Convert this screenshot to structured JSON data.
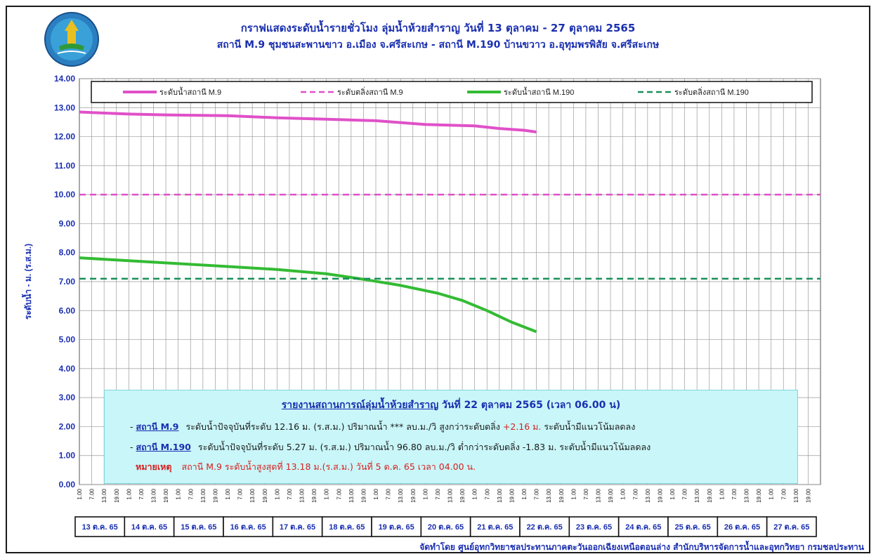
{
  "title": {
    "line1": "กราฟแสดงระดับน้ำรายชั่วโมง ลุ่มน้ำห้วยสำราญ วันที่ 13 ตุลาคม - 27 ตุลาคม 2565",
    "line2": "สถานี M.9 ชุมชนสะพานขาว อ.เมือง จ.ศรีสะเกษ  - สถานี M.190 บ้านขวาว อ.อุทุมพรพิสัย จ.ศรีสะเกษ"
  },
  "logo": {
    "text": "กรมชลประทาน",
    "icon": "royal-irrigation-department-seal-icon"
  },
  "chart_data": {
    "type": "line",
    "ylabel": "ระดับน้ำ  -  ม. (ร.ส.ม.)",
    "ylim": [
      0,
      14
    ],
    "yticks": [
      "0.00",
      "1.00",
      "2.00",
      "3.00",
      "4.00",
      "5.00",
      "6.00",
      "7.00",
      "8.00",
      "9.00",
      "10.00",
      "11.00",
      "12.00",
      "13.00",
      "14.00"
    ],
    "hour_ticks": [
      "1.00",
      "7.00",
      "13.00",
      "19.00"
    ],
    "dates": [
      "13 ต.ค. 65",
      "14 ต.ค. 65",
      "15 ต.ค. 65",
      "16 ต.ค. 65",
      "17 ต.ค. 65",
      "18 ต.ค. 65",
      "19 ต.ค. 65",
      "20 ต.ค. 65",
      "21 ต.ค. 65",
      "22 ต.ค. 65",
      "23 ต.ค. 65",
      "24 ต.ค. 65",
      "25 ต.ค. 65",
      "26 ต.ค. 65",
      "27 ต.ค. 65"
    ],
    "series": [
      {
        "name": "ระดับน้ำสถานี M.9",
        "color": "#e050c8",
        "dash": false,
        "x": [
          0,
          4,
          7,
          12,
          16,
          20,
          24,
          28,
          32,
          34,
          36,
          37
        ],
        "values": [
          12.85,
          12.78,
          12.75,
          12.72,
          12.65,
          12.6,
          12.55,
          12.42,
          12.37,
          12.28,
          12.22,
          12.16
        ]
      },
      {
        "name": "ระดับตลิ่งสถานี M.9",
        "color": "#e050c8",
        "dash": true,
        "x": [
          0,
          60
        ],
        "values": [
          10.0,
          10.0
        ]
      },
      {
        "name": "ระดับน้ำสถานี M.190",
        "color": "#33bb33",
        "dash": false,
        "x": [
          0,
          4,
          8,
          12,
          16,
          20,
          23,
          26,
          29,
          31,
          33,
          35,
          37
        ],
        "values": [
          7.82,
          7.72,
          7.62,
          7.52,
          7.42,
          7.27,
          7.08,
          6.87,
          6.6,
          6.35,
          6.0,
          5.6,
          5.27
        ]
      },
      {
        "name": "ระดับตลิ่งสถานี M.190",
        "color": "#1a8f5a",
        "dash": true,
        "x": [
          0,
          60
        ],
        "values": [
          7.1,
          7.1
        ]
      }
    ],
    "legend": "top",
    "grid": true
  },
  "report": {
    "title_main": "รายงานสถานการณ์ลุ่มน้ำห้วยสำราญ",
    "title_rest": " วันที่ 22 ตุลาคม 2565  (เวลา 06.00 น)",
    "m9": {
      "dash": "- ",
      "station": "สถานี M.9",
      "text1": "ระดับน้ำปัจจุบันที่ระดับ 12.16 ม. (ร.ส.ม.) ปริมาณน้ำ ***    ลบ.ม./วิ สูงกว่าระดับตลิ่ง ",
      "highlight": "+2.16 ม.",
      "text2": " ระดับน้ำมีแนวโน้มลดลง"
    },
    "m190": {
      "dash": "- ",
      "station": "สถานี M.190",
      "text": "ระดับน้ำปัจจุบันที่ระดับ 5.27 ม. (ร.ส.ม.) ปริมาณน้ำ 96.80  ลบ.ม./วิ  ต่ำกว่าระดับตลิ่ง -1.83 ม. ระดับน้ำมีแนวโน้มลดลง"
    },
    "note_label": "หมายเหตุ",
    "note_text": "สถานี M.9 ระดับน้ำสูงสุดที่ 13.18 ม.(ร.ส.ม.) วันที่ 5 ต.ค. 65 เวลา 04.00 น."
  },
  "credit": "จัดทำโดย ศูนย์อุทกวิทยาชลประทานภาคตะวันออกเฉียงเหนือตอนล่าง สำนักบริหารจัดการน้ำและอุทกวิทยา กรมชลประทาน"
}
